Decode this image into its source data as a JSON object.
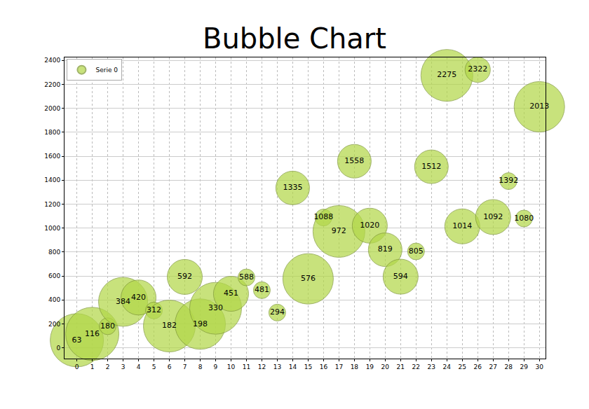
{
  "chart_data": {
    "type": "bubble",
    "title": "Bubble Chart",
    "x": [
      0,
      1,
      2,
      3,
      4,
      5,
      6,
      7,
      8,
      9,
      10,
      11,
      12,
      13,
      14,
      15,
      16,
      17,
      18,
      19,
      20,
      21,
      22,
      23,
      24,
      25,
      26,
      27,
      28,
      29,
      30
    ],
    "series": [
      {
        "name": "Serie 0",
        "color": "#b3d84a",
        "values": [
          63,
          116,
          180,
          384,
          420,
          312,
          182,
          592,
          198,
          330,
          451,
          588,
          481,
          294,
          1335,
          576,
          1088,
          972,
          1558,
          1020,
          819,
          594,
          805,
          1512,
          2275,
          1014,
          2322,
          1092,
          1392,
          1080,
          2013
        ],
        "sizes": [
          38,
          38,
          12,
          35,
          25,
          12,
          37,
          25,
          36,
          37,
          25,
          12,
          12,
          12,
          24,
          36,
          12,
          37,
          24,
          25,
          24,
          25,
          12,
          24,
          37,
          25,
          18,
          25,
          12,
          12,
          36
        ]
      }
    ],
    "xlim": [
      -0.8,
      30.4
    ],
    "xticks": [
      0,
      1,
      2,
      3,
      4,
      5,
      6,
      7,
      8,
      9,
      10,
      11,
      12,
      13,
      14,
      15,
      16,
      17,
      18,
      19,
      20,
      21,
      22,
      23,
      24,
      25,
      26,
      27,
      28,
      29,
      30
    ],
    "ylim": [
      -90,
      2425
    ],
    "yticks": [
      0,
      200,
      400,
      600,
      800,
      1000,
      1200,
      1400,
      1600,
      1800,
      2000,
      2200,
      2400
    ],
    "grid": true,
    "legend": "upper left",
    "data_labels": true
  }
}
